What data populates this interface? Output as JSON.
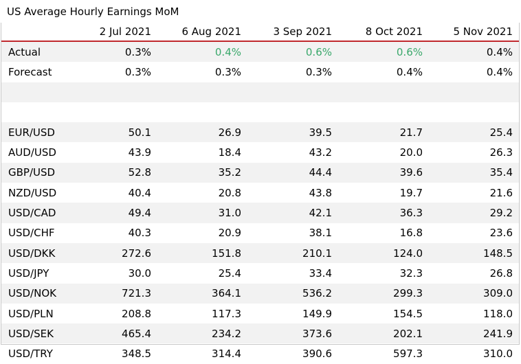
{
  "title": "US Average Hourly Earnings MoM",
  "columns": [
    "2 Jul 2021",
    "6 Aug 2021",
    "3 Sep 2021",
    "8 Oct 2021",
    "5 Nov 2021"
  ],
  "colors": {
    "header_rule": "#c0282d",
    "green": "#3aa86b",
    "shade": "#f2f2f2"
  },
  "rows": [
    {
      "label": "Actual",
      "values": [
        "0.3%",
        "0.4%",
        "0.6%",
        "0.6%",
        "0.4%"
      ],
      "green": [
        false,
        true,
        true,
        true,
        false
      ]
    },
    {
      "label": "Forecast",
      "values": [
        "0.3%",
        "0.3%",
        "0.3%",
        "0.4%",
        "0.4%"
      ]
    },
    {
      "label": "",
      "values": [
        "",
        "",
        "",
        "",
        ""
      ]
    },
    {
      "label": "",
      "values": [
        "",
        "",
        "",
        "",
        ""
      ]
    },
    {
      "label": "EUR/USD",
      "values": [
        "50.1",
        "26.9",
        "39.5",
        "21.7",
        "25.4"
      ]
    },
    {
      "label": "AUD/USD",
      "values": [
        "43.9",
        "18.4",
        "43.2",
        "20.0",
        "26.3"
      ]
    },
    {
      "label": "GBP/USD",
      "values": [
        "52.8",
        "35.2",
        "44.4",
        "39.6",
        "35.4"
      ]
    },
    {
      "label": "NZD/USD",
      "values": [
        "40.4",
        "20.8",
        "43.8",
        "19.7",
        "21.6"
      ]
    },
    {
      "label": "USD/CAD",
      "values": [
        "49.4",
        "31.0",
        "42.1",
        "36.3",
        "29.2"
      ]
    },
    {
      "label": "USD/CHF",
      "values": [
        "40.3",
        "20.9",
        "38.1",
        "16.8",
        "23.6"
      ]
    },
    {
      "label": "USD/DKK",
      "values": [
        "272.6",
        "151.8",
        "210.1",
        "124.0",
        "148.5"
      ]
    },
    {
      "label": "USD/JPY",
      "values": [
        "30.0",
        "25.4",
        "33.4",
        "32.3",
        "26.8"
      ]
    },
    {
      "label": "USD/NOK",
      "values": [
        "721.3",
        "364.1",
        "536.2",
        "299.3",
        "309.0"
      ]
    },
    {
      "label": "USD/PLN",
      "values": [
        "208.8",
        "117.3",
        "149.9",
        "154.5",
        "118.0"
      ]
    },
    {
      "label": "USD/SEK",
      "values": [
        "465.4",
        "234.2",
        "373.6",
        "202.1",
        "241.9"
      ]
    },
    {
      "label": "USD/TRY",
      "values": [
        "348.5",
        "314.4",
        "390.6",
        "597.3",
        "310.0"
      ]
    }
  ]
}
